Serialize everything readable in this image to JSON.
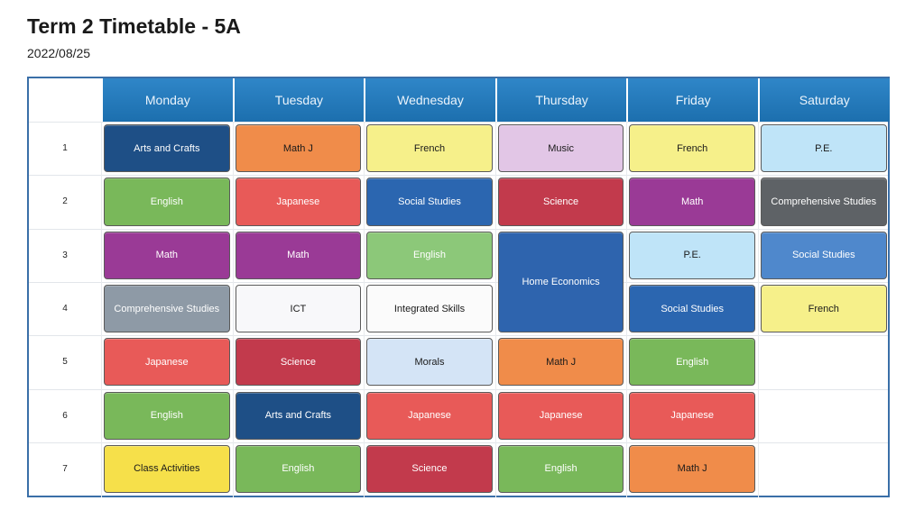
{
  "title": "Term 2 Timetable - 5A",
  "date": "2022/08/25",
  "days": [
    "Monday",
    "Tuesday",
    "Wednesday",
    "Thursday",
    "Friday",
    "Saturday"
  ],
  "periods": [
    "1",
    "2",
    "3",
    "4",
    "5",
    "6",
    "7"
  ],
  "subject_colors": {
    "Arts and Crafts": {
      "bg": "#1e4f86",
      "fg": "#ffffff"
    },
    "Math J": {
      "bg": "#f08c4a",
      "fg": "#1a1a1a"
    },
    "French": {
      "bg": "#f6f08a",
      "fg": "#1a1a1a"
    },
    "Music": {
      "bg": "#e2c6e6",
      "fg": "#1a1a1a"
    },
    "P.E.": {
      "bg": "#bfe4f8",
      "fg": "#1a1a1a"
    },
    "English": {
      "bg": "#79b85a",
      "fg": "#ffffff"
    },
    "Japanese": {
      "bg": "#e85a58",
      "fg": "#ffffff"
    },
    "Social Studies": {
      "bg": "#2b66b0",
      "fg": "#ffffff"
    },
    "Science": {
      "bg": "#c23a4c",
      "fg": "#ffffff"
    },
    "Math": {
      "bg": "#9a3a96",
      "fg": "#ffffff"
    },
    "Comprehensive Studies": {
      "bg": "#8e9aa6",
      "fg": "#ffffff"
    },
    "Home Economics": {
      "bg": "#2e64ae",
      "fg": "#ffffff"
    },
    "ICT": {
      "bg": "#f8f8fa",
      "fg": "#1a1a1a"
    },
    "Integrated Skills": {
      "bg": "#fbfbfb",
      "fg": "#1a1a1a"
    },
    "Morals": {
      "bg": "#cfe0f4",
      "fg": "#1a1a1a"
    },
    "Class Activities": {
      "bg": "#f6e04a",
      "fg": "#1a1a1a"
    }
  },
  "special_colors": {
    "Comprehensive Studies@5,1": {
      "bg": "#5e6266",
      "fg": "#ffffff"
    },
    "Social Studies@5,2": {
      "bg": "#4f88cc",
      "fg": "#ffffff"
    },
    "Social Studies@4,3": {
      "bg": "#2b66b0",
      "fg": "#ffffff"
    },
    "English@2,2": {
      "bg": "#8cc879",
      "fg": "#ffffff"
    },
    "Morals@2,4": {
      "bg": "#d4e4f6",
      "fg": "#1a1a1a"
    }
  },
  "schedule": [
    {
      "day": 0,
      "period": 0,
      "span": 1,
      "subject": "Arts and Crafts"
    },
    {
      "day": 0,
      "period": 1,
      "span": 1,
      "subject": "English"
    },
    {
      "day": 0,
      "period": 2,
      "span": 1,
      "subject": "Math"
    },
    {
      "day": 0,
      "period": 3,
      "span": 1,
      "subject": "Comprehensive Studies"
    },
    {
      "day": 0,
      "period": 4,
      "span": 1,
      "subject": "Japanese"
    },
    {
      "day": 0,
      "period": 5,
      "span": 1,
      "subject": "English"
    },
    {
      "day": 0,
      "period": 6,
      "span": 1,
      "subject": "Class Activities"
    },
    {
      "day": 1,
      "period": 0,
      "span": 1,
      "subject": "Math J"
    },
    {
      "day": 1,
      "period": 1,
      "span": 1,
      "subject": "Japanese"
    },
    {
      "day": 1,
      "period": 2,
      "span": 1,
      "subject": "Math"
    },
    {
      "day": 1,
      "period": 3,
      "span": 1,
      "subject": "ICT"
    },
    {
      "day": 1,
      "period": 4,
      "span": 1,
      "subject": "Science"
    },
    {
      "day": 1,
      "period": 5,
      "span": 1,
      "subject": "Arts and Crafts"
    },
    {
      "day": 1,
      "period": 6,
      "span": 1,
      "subject": "English"
    },
    {
      "day": 2,
      "period": 0,
      "span": 1,
      "subject": "French"
    },
    {
      "day": 2,
      "period": 1,
      "span": 1,
      "subject": "Social Studies"
    },
    {
      "day": 2,
      "period": 2,
      "span": 1,
      "subject": "English"
    },
    {
      "day": 2,
      "period": 3,
      "span": 1,
      "subject": "Integrated Skills"
    },
    {
      "day": 2,
      "period": 4,
      "span": 1,
      "subject": "Morals"
    },
    {
      "day": 2,
      "period": 5,
      "span": 1,
      "subject": "Japanese"
    },
    {
      "day": 2,
      "period": 6,
      "span": 1,
      "subject": "Science"
    },
    {
      "day": 3,
      "period": 0,
      "span": 1,
      "subject": "Music"
    },
    {
      "day": 3,
      "period": 1,
      "span": 1,
      "subject": "Science"
    },
    {
      "day": 3,
      "period": 2,
      "span": 2,
      "subject": "Home Economics"
    },
    {
      "day": 3,
      "period": 4,
      "span": 1,
      "subject": "Math J"
    },
    {
      "day": 3,
      "period": 5,
      "span": 1,
      "subject": "Japanese"
    },
    {
      "day": 3,
      "period": 6,
      "span": 1,
      "subject": "English"
    },
    {
      "day": 4,
      "period": 0,
      "span": 1,
      "subject": "French"
    },
    {
      "day": 4,
      "period": 1,
      "span": 1,
      "subject": "Math"
    },
    {
      "day": 4,
      "period": 2,
      "span": 1,
      "subject": "P.E."
    },
    {
      "day": 4,
      "period": 3,
      "span": 1,
      "subject": "Social Studies"
    },
    {
      "day": 4,
      "period": 4,
      "span": 1,
      "subject": "English"
    },
    {
      "day": 4,
      "period": 5,
      "span": 1,
      "subject": "Japanese"
    },
    {
      "day": 4,
      "period": 6,
      "span": 1,
      "subject": "Math J"
    },
    {
      "day": 5,
      "period": 0,
      "span": 1,
      "subject": "P.E."
    },
    {
      "day": 5,
      "period": 1,
      "span": 1,
      "subject": "Comprehensive Studies"
    },
    {
      "day": 5,
      "period": 2,
      "span": 1,
      "subject": "Social Studies"
    },
    {
      "day": 5,
      "period": 3,
      "span": 1,
      "subject": "French"
    }
  ]
}
